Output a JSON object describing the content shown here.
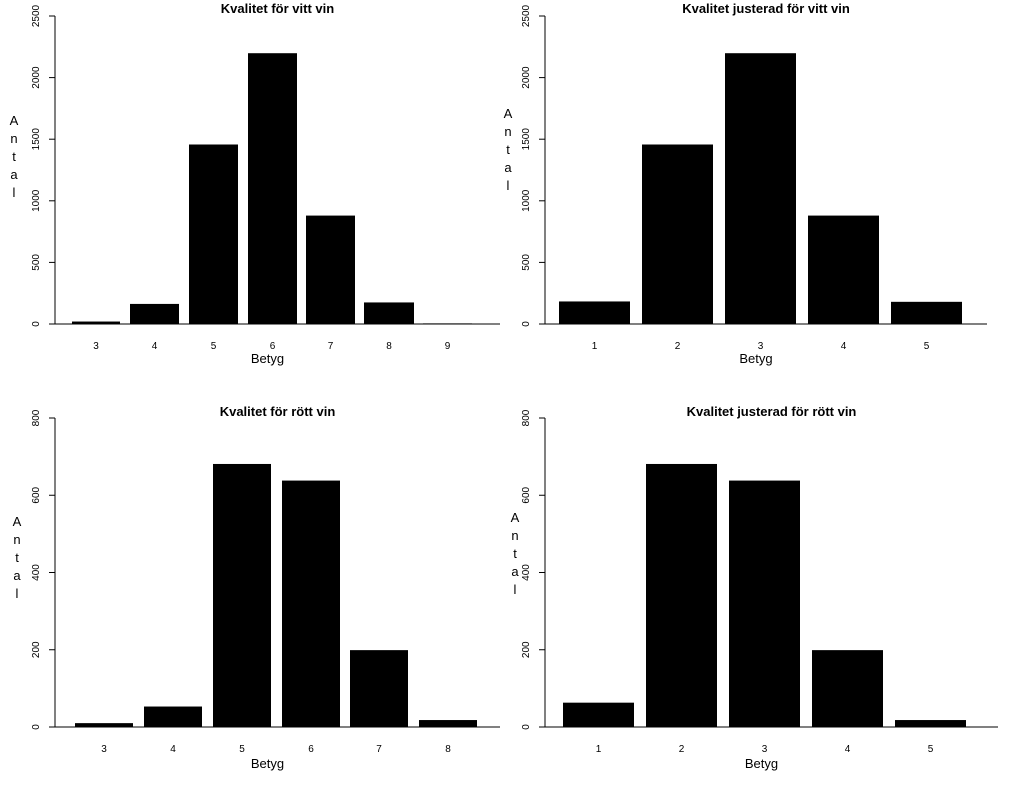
{
  "chart_data": [
    {
      "type": "bar",
      "title": "Kvalitet för vitt vin",
      "xlabel": "Betyg",
      "ylabel": "Antal",
      "categories": [
        "3",
        "4",
        "5",
        "6",
        "7",
        "8",
        "9"
      ],
      "values": [
        20,
        163,
        1457,
        2198,
        880,
        175,
        5
      ],
      "ylim": [
        0,
        2500
      ],
      "yticks": [
        0,
        500,
        1000,
        1500,
        2000,
        2500
      ],
      "grid": false,
      "bar_color": "#000000"
    },
    {
      "type": "bar",
      "title": "Kvalitet justerad för vitt vin",
      "xlabel": "Betyg",
      "ylabel": "Antal",
      "categories": [
        "1",
        "2",
        "3",
        "4",
        "5"
      ],
      "values": [
        183,
        1457,
        2198,
        880,
        180
      ],
      "ylim": [
        0,
        2500
      ],
      "yticks": [
        0,
        500,
        1000,
        1500,
        2000,
        2500
      ],
      "grid": false,
      "bar_color": "#000000"
    },
    {
      "type": "bar",
      "title": "Kvalitet för rött vin",
      "xlabel": "Betyg",
      "ylabel": "Antal",
      "categories": [
        "3",
        "4",
        "5",
        "6",
        "7",
        "8"
      ],
      "values": [
        10,
        53,
        681,
        638,
        199,
        18
      ],
      "ylim": [
        0,
        800
      ],
      "yticks": [
        0,
        200,
        400,
        600,
        800
      ],
      "grid": false,
      "bar_color": "#000000"
    },
    {
      "type": "bar",
      "title": "Kvalitet justerad för rött vin",
      "xlabel": "Betyg",
      "ylabel": "Antal",
      "categories": [
        "1",
        "2",
        "3",
        "4",
        "5"
      ],
      "values": [
        63,
        681,
        638,
        199,
        18
      ],
      "ylim": [
        0,
        800
      ],
      "yticks": [
        0,
        200,
        400,
        600,
        800
      ],
      "grid": false,
      "bar_color": "#000000"
    }
  ]
}
